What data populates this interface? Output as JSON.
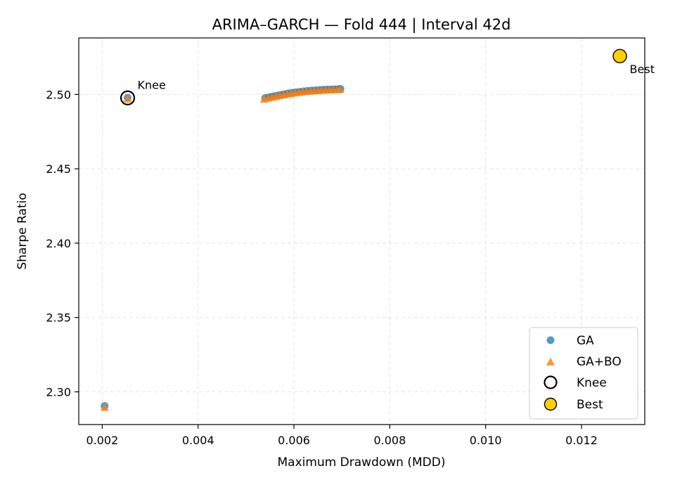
{
  "chart_data": {
    "type": "scatter",
    "title": "ARIMA–GARCH — Fold 444 | Interval 42d",
    "xlabel": "Maximum Drawdown (MDD)",
    "ylabel": "Sharpe Ratio",
    "xlim": [
      0.00151,
      0.01332
    ],
    "ylim": [
      2.278,
      2.538
    ],
    "xticks": [
      0.002,
      0.004,
      0.006,
      0.008,
      0.01,
      0.012
    ],
    "xtick_labels": [
      "0.002",
      "0.004",
      "0.006",
      "0.008",
      "0.010",
      "0.012"
    ],
    "yticks": [
      2.3,
      2.35,
      2.4,
      2.45,
      2.5
    ],
    "ytick_labels": [
      "2.30",
      "2.35",
      "2.40",
      "2.45",
      "2.50"
    ],
    "grid": true,
    "legend_position": "lower-right",
    "series": [
      {
        "name": "GA",
        "marker": "circle",
        "color": "#1f77b4",
        "x": [
          0.00205,
          0.00253,
          0.0054,
          0.00548,
          0.00556,
          0.00564,
          0.00572,
          0.0058,
          0.00588,
          0.00596,
          0.00604,
          0.00612,
          0.0062,
          0.00628,
          0.00636,
          0.00644,
          0.00652,
          0.0066,
          0.00668,
          0.00676,
          0.00684,
          0.00692,
          0.00697
        ],
        "y": [
          2.2905,
          2.4978,
          2.4976,
          2.4982,
          2.4987,
          2.4992,
          2.4997,
          2.5002,
          2.5007,
          2.5011,
          2.5015,
          2.5018,
          2.5021,
          2.5024,
          2.5026,
          2.5028,
          2.503,
          2.5032,
          2.5033,
          2.5034,
          2.5035,
          2.5036,
          2.5037
        ]
      },
      {
        "name": "GA+BO",
        "marker": "triangle",
        "color": "#ff7f0e",
        "x": [
          0.00205,
          0.00253,
          0.00538,
          0.00546,
          0.00554,
          0.00562,
          0.0057,
          0.00578,
          0.00586,
          0.00594,
          0.00602,
          0.0061,
          0.00618,
          0.00626,
          0.00634,
          0.00642,
          0.0065,
          0.00658,
          0.00666,
          0.00674,
          0.00682,
          0.0069,
          0.00696
        ],
        "y": [
          2.2895,
          2.497,
          2.4968,
          2.4975,
          2.4981,
          2.4987,
          2.4992,
          2.4997,
          2.5002,
          2.5006,
          2.501,
          2.5014,
          2.5017,
          2.502,
          2.5022,
          2.5024,
          2.5026,
          2.5028,
          2.5029,
          2.503,
          2.5031,
          2.5032,
          2.5033
        ]
      }
    ],
    "knee": {
      "name": "Knee",
      "x": 0.00253,
      "y": 2.4977,
      "label": "Knee"
    },
    "best": {
      "name": "Best",
      "x": 0.0128,
      "y": 2.5258,
      "label": "Best",
      "color": "#ffd000"
    },
    "legend": [
      {
        "label": "GA",
        "marker": "circle"
      },
      {
        "label": "GA+BO",
        "marker": "triangle"
      },
      {
        "label": "Knee",
        "marker": "ring"
      },
      {
        "label": "Best",
        "marker": "gold-circle"
      }
    ]
  }
}
